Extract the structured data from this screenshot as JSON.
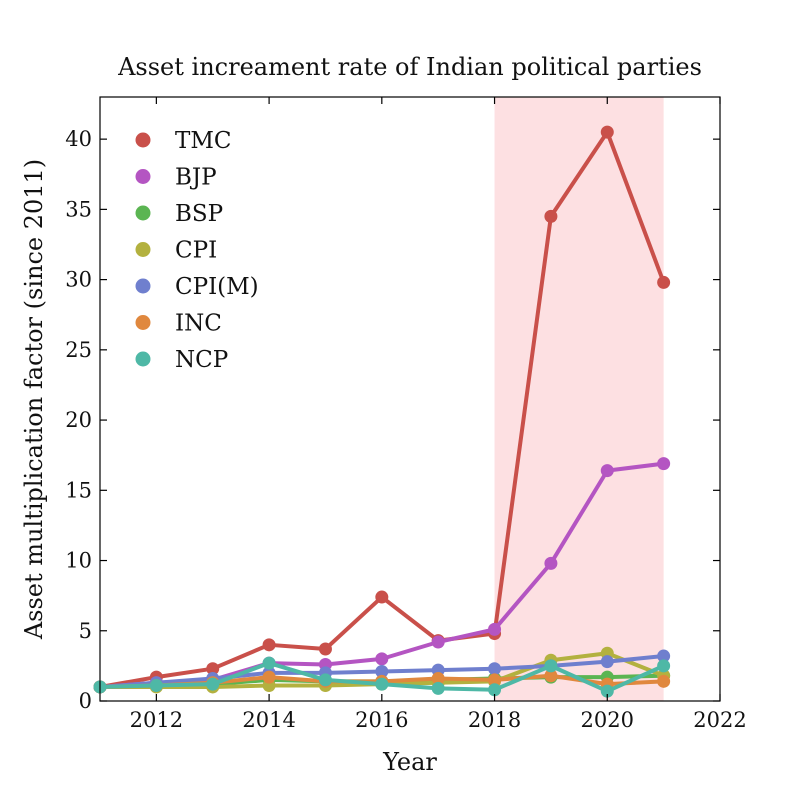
{
  "chart_data": {
    "type": "line",
    "title": "Asset increament rate of Indian political parties",
    "xlabel": "Year",
    "ylabel": "Asset multiplication factor (since 2011)",
    "xlim": [
      2011,
      2022
    ],
    "ylim": [
      0,
      43
    ],
    "xticks": [
      2012,
      2014,
      2016,
      2018,
      2020,
      2022
    ],
    "yticks": [
      0,
      5,
      10,
      15,
      20,
      25,
      30,
      35,
      40
    ],
    "grid": false,
    "legend_position": "top-left",
    "highlight_band": {
      "x_start": 2018,
      "x_end": 2021,
      "color": "#fde0e2"
    },
    "x": [
      2011,
      2012,
      2013,
      2014,
      2015,
      2016,
      2017,
      2018,
      2019,
      2020,
      2021
    ],
    "series": [
      {
        "name": "TMC",
        "color": "#c9504a",
        "values": [
          1.0,
          1.7,
          2.3,
          4.0,
          3.7,
          7.4,
          4.3,
          4.8,
          34.5,
          40.5,
          29.8
        ]
      },
      {
        "name": "BJP",
        "color": "#b455c2",
        "values": [
          1.0,
          1.3,
          1.5,
          2.7,
          2.6,
          3.0,
          4.2,
          5.1,
          9.8,
          16.4,
          16.9
        ]
      },
      {
        "name": "BSP",
        "color": "#5bb552",
        "values": [
          1.0,
          1.1,
          1.2,
          1.5,
          1.4,
          1.4,
          1.5,
          1.6,
          1.7,
          1.7,
          1.8
        ]
      },
      {
        "name": "CPI",
        "color": "#b3b13f",
        "values": [
          1.0,
          1.0,
          1.0,
          1.1,
          1.1,
          1.2,
          1.3,
          1.4,
          2.9,
          3.4,
          1.8
        ]
      },
      {
        "name": "CPI(M)",
        "color": "#6f7fce",
        "values": [
          1.0,
          1.3,
          1.6,
          2.0,
          2.0,
          2.1,
          2.2,
          2.3,
          2.5,
          2.8,
          3.2
        ]
      },
      {
        "name": "INC",
        "color": "#e0883e",
        "values": [
          1.0,
          1.1,
          1.3,
          1.7,
          1.4,
          1.4,
          1.6,
          1.5,
          1.8,
          1.2,
          1.4
        ]
      },
      {
        "name": "NCP",
        "color": "#4eb8a6",
        "values": [
          1.0,
          1.1,
          1.2,
          2.7,
          1.5,
          1.2,
          0.9,
          0.8,
          2.5,
          0.7,
          2.5
        ]
      }
    ]
  }
}
